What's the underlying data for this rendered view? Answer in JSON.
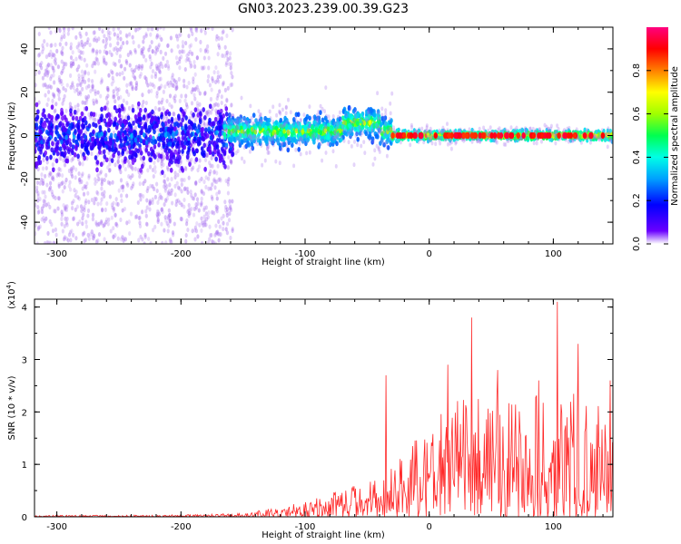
{
  "figure": {
    "title": "GN03.2023.239.00.39.G23"
  },
  "colors": {
    "snr_line": "#ff2a2a",
    "spectrogram_scatter": "#a770f0",
    "colormap": [
      "#ffffff",
      "#6a00ff",
      "#0000ff",
      "#00a0ff",
      "#00ffe6",
      "#00ff50",
      "#a0ff00",
      "#ffff00",
      "#ff8000",
      "#ff0000",
      "#ff007f"
    ]
  },
  "chart_data": [
    {
      "type": "heatmap",
      "title": "",
      "xlabel": "Height of straight line (km)",
      "ylabel": "Frequency (Hz)",
      "xlim": [
        -318,
        148
      ],
      "ylim": [
        -50,
        50
      ],
      "xticks": [
        -300,
        -200,
        -100,
        0,
        100
      ],
      "xtick_labels": [
        "-300",
        "-200",
        "-100",
        "0",
        "100"
      ],
      "yticks": [
        -40,
        -20,
        0,
        20,
        40
      ],
      "ytick_labels": [
        "-40",
        "-20",
        "0",
        "20",
        "40"
      ],
      "colorbar": {
        "label": "Normalized spectral amplitude",
        "range": [
          0,
          1
        ],
        "ticks": [
          0.0,
          0.2,
          0.4,
          0.6,
          0.8
        ],
        "tick_labels": [
          "0.0",
          "0.2",
          "0.4",
          "0.6",
          "0.8"
        ]
      },
      "regions": [
        {
          "x": [
            -318,
            -158
          ],
          "freq_center": 0,
          "freq_spread": 50,
          "amplitude": [
            0.05,
            0.35
          ],
          "description_density": "scattered"
        },
        {
          "x": [
            -165,
            -30
          ],
          "freq_center": 2,
          "freq_spread": 6,
          "amplitude": [
            0.2,
            0.7
          ]
        },
        {
          "x": [
            -30,
            148
          ],
          "freq_center": 0,
          "freq_spread": 2,
          "amplitude": [
            0.3,
            0.95
          ]
        }
      ],
      "grid": false
    },
    {
      "type": "line",
      "title": "",
      "xlabel": "Height of straight line (km)",
      "ylabel": "SNR (10 * v/v)",
      "y_multiplier_label": "(x10",
      "y_multiplier_exp": "4",
      "xlim": [
        -318,
        148
      ],
      "ylim": [
        0,
        4.15
      ],
      "xticks": [
        -300,
        -200,
        -100,
        0,
        100
      ],
      "xtick_labels": [
        "-300",
        "-200",
        "-100",
        "0",
        "100"
      ],
      "yticks": [
        0,
        1,
        2,
        3,
        4
      ],
      "ytick_labels": [
        "0",
        "1",
        "2",
        "3",
        "4"
      ],
      "series": [
        {
          "envelope_x": [
            -318,
            -250,
            -200,
            -160,
            -140,
            -120,
            -100,
            -80,
            -60,
            -40,
            -30,
            -20,
            -10,
            0,
            10,
            20,
            35,
            50,
            70,
            90,
            103,
            110,
            130,
            148
          ],
          "envelope_y": [
            0.03,
            0.03,
            0.04,
            0.06,
            0.12,
            0.18,
            0.3,
            0.45,
            0.6,
            0.8,
            1.0,
            1.2,
            1.5,
            1.7,
            2.0,
            2.2,
            2.4,
            2.3,
            2.4,
            2.4,
            2.6,
            2.5,
            2.3,
            2.2
          ],
          "peaks_x": [
            -35,
            15,
            34,
            55,
            88,
            103,
            120,
            146
          ],
          "peaks_y": [
            2.7,
            2.9,
            3.8,
            2.8,
            2.6,
            4.1,
            3.3,
            2.6
          ]
        }
      ],
      "grid": false
    }
  ]
}
